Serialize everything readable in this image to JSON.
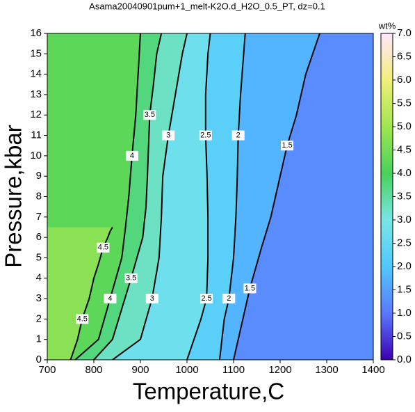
{
  "chart_data": {
    "type": "contour",
    "title": "Asama20040901pum+1_melt-K2O.d_H2O_0.5_PT, dz=0.1",
    "x_label": "Temperature,C",
    "y_label": "Pressure,kbar",
    "xlim": [
      700,
      1400
    ],
    "xticks": [
      700,
      800,
      900,
      1000,
      1100,
      1200,
      1300,
      1400
    ],
    "ylim": [
      0,
      16
    ],
    "yticks": [
      0,
      1,
      2,
      3,
      4,
      5,
      6,
      7,
      8,
      9,
      10,
      11,
      12,
      13,
      14,
      15,
      16
    ],
    "colorbar": {
      "label": "wt%",
      "lim": [
        0,
        7
      ],
      "ticks": [
        {
          "value": 0,
          "label": "0.0"
        },
        {
          "value": 0.5,
          "label": "0.5"
        },
        {
          "value": 1,
          "label": "1.0"
        },
        {
          "value": 1.5,
          "label": "1.5"
        },
        {
          "value": 2,
          "label": "2.0"
        },
        {
          "value": 2.5,
          "label": "2.5"
        },
        {
          "value": 3,
          "label": "3.0"
        },
        {
          "value": 3.5,
          "label": "3.5"
        },
        {
          "value": 4,
          "label": "4.0"
        },
        {
          "value": 4.5,
          "label": "4.5"
        },
        {
          "value": 5,
          "label": "5.0"
        },
        {
          "value": 5.5,
          "label": "5.5"
        },
        {
          "value": 6,
          "label": "6.0"
        },
        {
          "value": 6.5,
          "label": "6.5"
        },
        {
          "value": 7,
          "label": "7.0"
        }
      ],
      "colors": [
        "#3c00b4",
        "#5a78ff",
        "#50c8ff",
        "#78e6e6",
        "#46d25a",
        "#a0e650",
        "#f0f078",
        "#ffe6ff"
      ]
    },
    "contours": [
      {
        "level": 1.5,
        "x": [
          1100,
          1120,
          1135,
          1160,
          1180,
          1200,
          1215,
          1235,
          1255,
          1285
        ],
        "y": [
          0,
          2,
          3.5,
          5.5,
          7,
          9,
          10.5,
          12,
          14,
          16
        ]
      },
      {
        "level": 2,
        "x": [
          1070,
          1080,
          1090,
          1100,
          1105,
          1108,
          1110,
          1115,
          1120,
          1125
        ],
        "y": [
          0,
          2,
          3,
          5,
          7,
          9,
          11,
          13,
          14.5,
          16
        ]
      },
      {
        "level": 2.5,
        "x": [
          1000,
          1030,
          1042,
          1045,
          1045,
          1043,
          1040,
          1040,
          1045,
          1050
        ],
        "y": [
          0,
          2,
          3,
          5,
          7,
          9,
          11,
          13,
          15,
          16
        ]
      },
      {
        "level": 3,
        "x": [
          840,
          900,
          925,
          940,
          945,
          948,
          960,
          975,
          990,
          1000
        ],
        "y": [
          0,
          1,
          3,
          5,
          7,
          9,
          11,
          13,
          15,
          16
        ]
      },
      {
        "level": 3.5,
        "x": [
          800,
          840,
          880,
          905,
          912,
          915,
          920,
          928,
          935,
          945
        ],
        "y": [
          0,
          1,
          4,
          6,
          7.5,
          9,
          12,
          13.5,
          15,
          16
        ]
      },
      {
        "level": 4,
        "x": [
          760,
          810,
          835,
          860,
          868,
          875,
          882,
          890,
          895,
          900
        ],
        "y": [
          0,
          1,
          3,
          5,
          6.5,
          8,
          10,
          12,
          14,
          16
        ]
      },
      {
        "level": 4.5,
        "x": [
          750,
          765,
          775,
          790,
          800,
          810,
          820,
          830,
          835,
          840
        ],
        "y": [
          0,
          1,
          2,
          3,
          4,
          4.7,
          5.5,
          6,
          6.3,
          6.5
        ]
      }
    ]
  }
}
